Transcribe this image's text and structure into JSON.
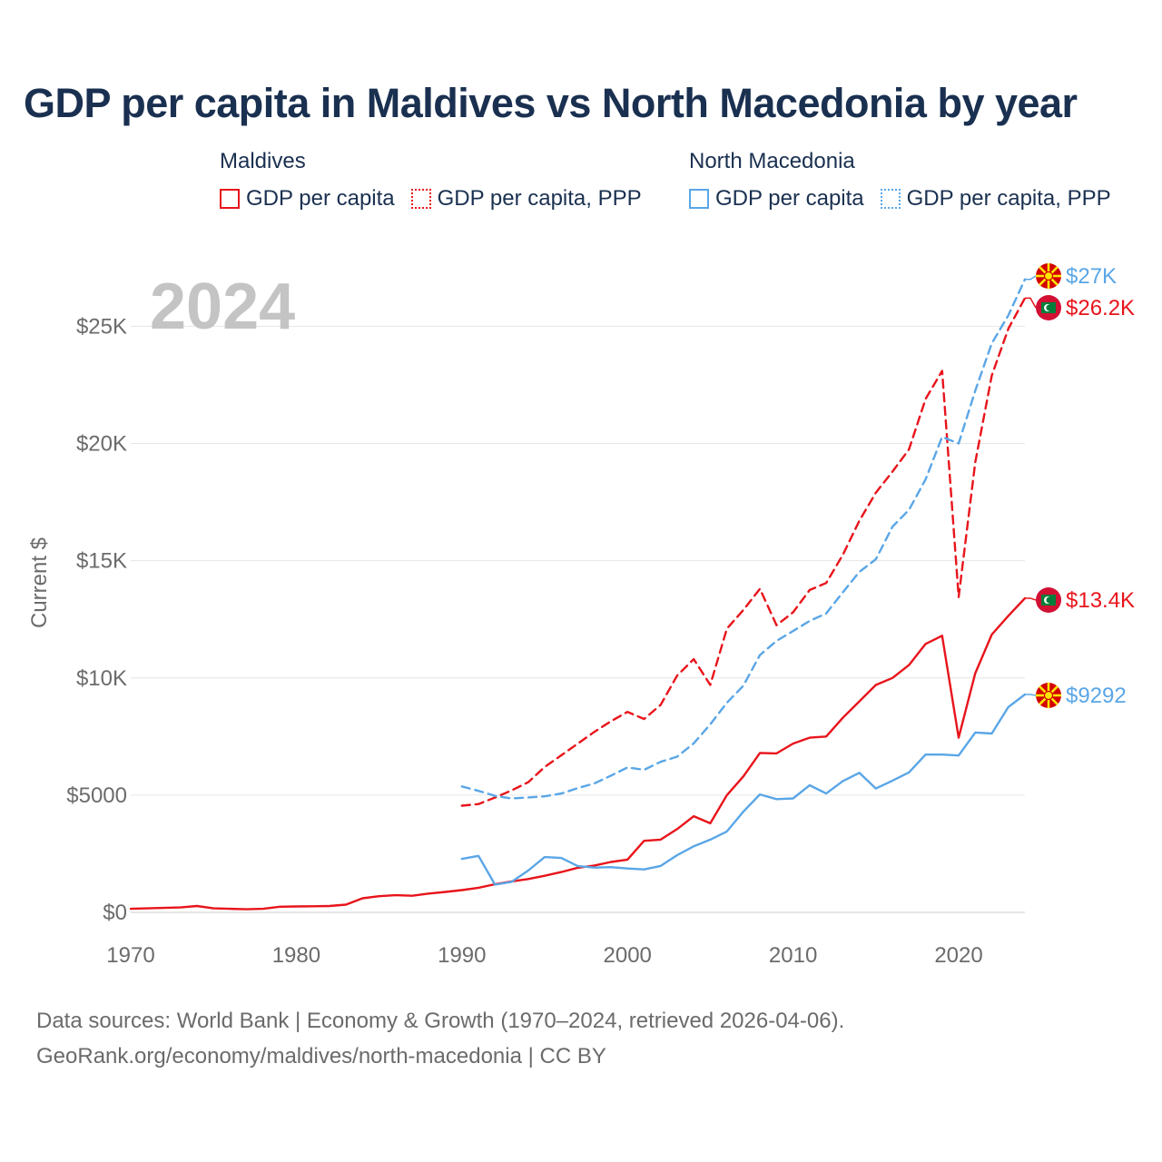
{
  "title": "GDP per capita in Maldives vs North Macedonia by year",
  "legend": {
    "groups": [
      {
        "label": "Maldives",
        "color": "#e8141b",
        "items": [
          {
            "label": "GDP per capita",
            "style": "solid"
          },
          {
            "label": "GDP per capita, PPP",
            "style": "dashed"
          }
        ]
      },
      {
        "label": "North Macedonia",
        "color": "#5aa6e6",
        "items": [
          {
            "label": "GDP per capita",
            "style": "solid"
          },
          {
            "label": "GDP per capita, PPP",
            "style": "dashed"
          }
        ]
      }
    ]
  },
  "year_watermark": "2024",
  "footer": {
    "line1": "Data sources: World Bank | Economy & Growth (1970–2024, retrieved 2026-04-06).",
    "line2": "GeoRank.org/economy/maldives/north-macedonia | CC BY"
  },
  "colors": {
    "maldives": "#e8141b",
    "north_macedonia": "#5aa6e6",
    "title": "#1a3050"
  },
  "chart_data": {
    "type": "line",
    "title": "GDP per capita in Maldives vs North Macedonia by year",
    "xlabel": "",
    "ylabel": "Current $",
    "xlim": [
      1970,
      2024
    ],
    "ylim": [
      0,
      27000
    ],
    "x_ticks": [
      1970,
      1980,
      1990,
      2000,
      2010,
      2020
    ],
    "x_tick_labels": [
      "1970",
      "1980",
      "1990",
      "2000",
      "2010",
      "2020"
    ],
    "y_ticks": [
      0,
      5000,
      10000,
      15000,
      20000,
      25000
    ],
    "y_tick_labels": [
      "$0",
      "$5000",
      "$10K",
      "$15K",
      "$20K",
      "$25K"
    ],
    "grid": true,
    "series": [
      {
        "name": "Maldives GDP per capita",
        "country": "maldives",
        "style": "solid",
        "end_label": "$13.4K",
        "x": [
          1970,
          1971,
          1972,
          1973,
          1974,
          1975,
          1976,
          1977,
          1978,
          1979,
          1980,
          1981,
          1982,
          1983,
          1984,
          1985,
          1986,
          1987,
          1988,
          1989,
          1990,
          1991,
          1992,
          1993,
          1994,
          1995,
          1996,
          1997,
          1998,
          1999,
          2000,
          2001,
          2002,
          2003,
          2004,
          2005,
          2006,
          2007,
          2008,
          2009,
          2010,
          2011,
          2012,
          2013,
          2014,
          2015,
          2016,
          2017,
          2018,
          2019,
          2020,
          2021,
          2022,
          2023,
          2024
        ],
        "values": [
          150,
          170,
          190,
          210,
          270,
          170,
          150,
          130,
          150,
          240,
          250,
          260,
          270,
          330,
          600,
          690,
          730,
          710,
          800,
          870,
          950,
          1050,
          1200,
          1320,
          1420,
          1560,
          1720,
          1900,
          2000,
          2150,
          2250,
          3050,
          3100,
          3550,
          4100,
          3800,
          5000,
          5800,
          6800,
          6780,
          7200,
          7450,
          7500,
          8300,
          9000,
          9700,
          10000,
          10550,
          11450,
          11800,
          7450,
          10200,
          11850,
          12650,
          13400
        ]
      },
      {
        "name": "Maldives GDP per capita, PPP",
        "country": "maldives",
        "style": "dashed",
        "end_label": "$26.2K",
        "x": [
          1990,
          1991,
          1992,
          1993,
          1994,
          1995,
          1996,
          1997,
          1998,
          1999,
          2000,
          2001,
          2002,
          2003,
          2004,
          2005,
          2006,
          2007,
          2008,
          2009,
          2010,
          2011,
          2012,
          2013,
          2014,
          2015,
          2016,
          2017,
          2018,
          2019,
          2020,
          2021,
          2022,
          2023,
          2024
        ],
        "values": [
          4550,
          4620,
          4900,
          5200,
          5550,
          6200,
          6700,
          7200,
          7700,
          8150,
          8550,
          8250,
          8850,
          10100,
          10800,
          9700,
          12100,
          12900,
          13800,
          12250,
          12800,
          13750,
          14050,
          15250,
          16700,
          17900,
          18800,
          19750,
          21900,
          23100,
          13450,
          19200,
          22900,
          24900,
          26200
        ]
      },
      {
        "name": "North Macedonia GDP per capita",
        "country": "north_macedonia",
        "style": "solid",
        "end_label": "$9292",
        "x": [
          1990,
          1991,
          1992,
          1993,
          1994,
          1995,
          1996,
          1997,
          1998,
          1999,
          2000,
          2001,
          2002,
          2003,
          2004,
          2005,
          2006,
          2007,
          2008,
          2009,
          2010,
          2011,
          2012,
          2013,
          2014,
          2015,
          2016,
          2017,
          2018,
          2019,
          2020,
          2021,
          2022,
          2023,
          2024
        ],
        "values": [
          2280,
          2410,
          1180,
          1300,
          1780,
          2360,
          2320,
          1970,
          1910,
          1930,
          1870,
          1830,
          1980,
          2440,
          2820,
          3100,
          3450,
          4300,
          5030,
          4830,
          4860,
          5420,
          5070,
          5600,
          5950,
          5280,
          5620,
          5970,
          6730,
          6730,
          6690,
          7670,
          7630,
          8760,
          9292
        ]
      },
      {
        "name": "North Macedonia GDP per capita, PPP",
        "country": "north_macedonia",
        "style": "dashed",
        "end_label": "$27K",
        "x": [
          1990,
          1991,
          1992,
          1993,
          1994,
          1995,
          1996,
          1997,
          1998,
          1999,
          2000,
          2001,
          2002,
          2003,
          2004,
          2005,
          2006,
          2007,
          2008,
          2009,
          2010,
          2011,
          2012,
          2013,
          2014,
          2015,
          2016,
          2017,
          2018,
          2019,
          2020,
          2021,
          2022,
          2023,
          2024
        ],
        "values": [
          5370,
          5180,
          4970,
          4860,
          4900,
          4950,
          5070,
          5300,
          5500,
          5830,
          6180,
          6080,
          6420,
          6640,
          7210,
          8020,
          8940,
          9670,
          10980,
          11580,
          12000,
          12430,
          12750,
          13650,
          14520,
          15060,
          16450,
          17170,
          18470,
          20280,
          20000,
          22250,
          24270,
          25470,
          27000
        ]
      }
    ]
  }
}
